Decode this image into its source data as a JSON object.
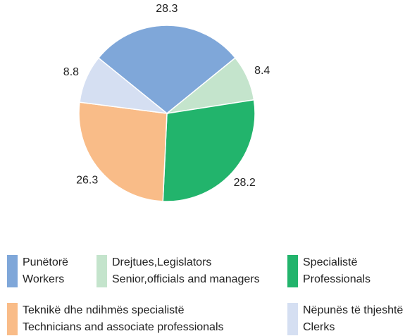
{
  "chart_data": {
    "type": "pie",
    "categories": [
      "Punëtorë",
      "Drejtues,Legislators",
      "Specialistë",
      "Teknikë dhe ndihmës specialistë",
      "Nëpunës të thjeshtë"
    ],
    "categories_en": [
      "Workers",
      "Senior,officials and managers",
      "Professionals",
      "Technicians and associate  professionals",
      "Clerks"
    ],
    "values": [
      28.3,
      8.4,
      28.2,
      26.3,
      8.8
    ],
    "colors": [
      "#7fa7d9",
      "#c4e4cc",
      "#22b46c",
      "#f9bc88",
      "#d5dff2"
    ]
  }
}
